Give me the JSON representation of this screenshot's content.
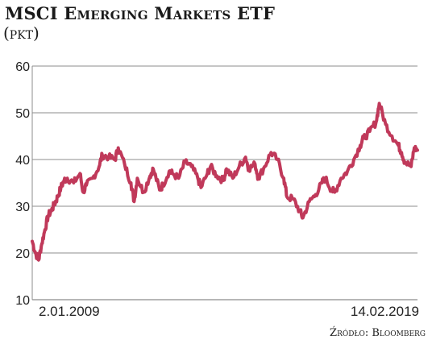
{
  "chart_data": {
    "type": "line",
    "title": "MSCI Emerging Markets ETF",
    "subtitle": "(pkt)",
    "source": "Źródło: Bloomberg",
    "x_start_label": "2.01.2009",
    "x_end_label": "14.02.2019",
    "ylim": [
      10,
      60
    ],
    "yticks": [
      10,
      20,
      30,
      40,
      50,
      60
    ],
    "grid": true,
    "line_color": "#c0395a",
    "series": [
      {
        "x": [
          "2009-01",
          "2009-02",
          "2009-03",
          "2009-04",
          "2009-05",
          "2009-06",
          "2009-07",
          "2009-08",
          "2009-09",
          "2009-10",
          "2009-11",
          "2009-12",
          "2010-02",
          "2010-04",
          "2010-05",
          "2010-06",
          "2010-08",
          "2010-10",
          "2010-11",
          "2011-01",
          "2011-03",
          "2011-04",
          "2011-06",
          "2011-08",
          "2011-09",
          "2011-10",
          "2011-12",
          "2012-02",
          "2012-03",
          "2012-05",
          "2012-06",
          "2012-08",
          "2012-09",
          "2012-11",
          "2013-01",
          "2013-03",
          "2013-05",
          "2013-06",
          "2013-08",
          "2013-09",
          "2013-11",
          "2014-01",
          "2014-02",
          "2014-04",
          "2014-06",
          "2014-08",
          "2014-09",
          "2014-11",
          "2014-12",
          "2015-02",
          "2015-04",
          "2015-06",
          "2015-08",
          "2015-09",
          "2015-11",
          "2016-01",
          "2016-02",
          "2016-04",
          "2016-06",
          "2016-08",
          "2016-09",
          "2016-11",
          "2016-12",
          "2017-02",
          "2017-04",
          "2017-06",
          "2017-08",
          "2017-09",
          "2017-11",
          "2018-01",
          "2018-02",
          "2018-04",
          "2018-06",
          "2018-08",
          "2018-09",
          "2018-10",
          "2018-12",
          "2019-01",
          "2019-02"
        ],
        "values": [
          22.5,
          20.0,
          18.5,
          22.0,
          25.0,
          28.0,
          29.0,
          30.5,
          32.0,
          34.0,
          35.5,
          36.0,
          35.0,
          37.0,
          33.0,
          34.5,
          36.0,
          38.5,
          41.0,
          40.5,
          40.0,
          42.5,
          39.0,
          35.0,
          31.0,
          36.0,
          33.0,
          36.5,
          38.0,
          33.5,
          34.5,
          37.5,
          37.0,
          36.0,
          39.5,
          38.5,
          36.0,
          34.0,
          37.0,
          38.5,
          36.5,
          35.5,
          38.0,
          36.0,
          38.5,
          40.5,
          38.0,
          39.0,
          36.0,
          38.5,
          41.5,
          40.0,
          36.0,
          32.0,
          31.5,
          29.0,
          27.5,
          31.0,
          32.5,
          35.0,
          36.0,
          33.5,
          33.0,
          36.0,
          37.5,
          40.0,
          43.0,
          44.5,
          46.0,
          48.0,
          52.0,
          47.5,
          45.0,
          43.0,
          41.5,
          39.5,
          38.5,
          42.5,
          42.0
        ]
      }
    ]
  }
}
